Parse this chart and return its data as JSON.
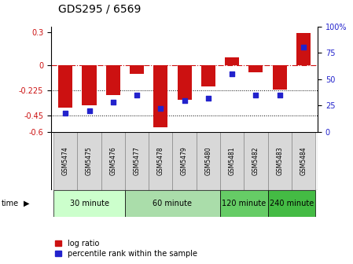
{
  "title": "GDS295 / 6569",
  "samples": [
    "GSM5474",
    "GSM5475",
    "GSM5476",
    "GSM5477",
    "GSM5478",
    "GSM5479",
    "GSM5480",
    "GSM5481",
    "GSM5482",
    "GSM5483",
    "GSM5484"
  ],
  "log_ratio": [
    -0.38,
    -0.36,
    -0.27,
    -0.08,
    -0.56,
    -0.31,
    -0.19,
    0.07,
    -0.06,
    -0.22,
    0.29
  ],
  "percentile": [
    18,
    20,
    28,
    35,
    22,
    30,
    32,
    55,
    35,
    35,
    80
  ],
  "bar_color": "#cc1111",
  "dot_color": "#2222cc",
  "ylim_left": [
    -0.6,
    0.35
  ],
  "ylim_right": [
    0,
    100
  ],
  "yticks_left": [
    -0.6,
    -0.45,
    -0.225,
    0,
    0.3
  ],
  "yticks_right": [
    0,
    25,
    50,
    75,
    100
  ],
  "hline_y1": -0.225,
  "hline_y2": -0.45,
  "groups": [
    {
      "label": "30 minute",
      "start": 0,
      "end": 3,
      "color": "#ccffcc"
    },
    {
      "label": "60 minute",
      "start": 3,
      "end": 7,
      "color": "#aaddaa"
    },
    {
      "label": "120 minute",
      "start": 7,
      "end": 9,
      "color": "#66cc66"
    },
    {
      "label": "240 minute",
      "start": 9,
      "end": 11,
      "color": "#44bb44"
    }
  ],
  "time_label": "time",
  "legend_bar_label": "log ratio",
  "legend_dot_label": "percentile rank within the sample",
  "cell_color": "#d8d8d8",
  "cell_edge_color": "#888888"
}
